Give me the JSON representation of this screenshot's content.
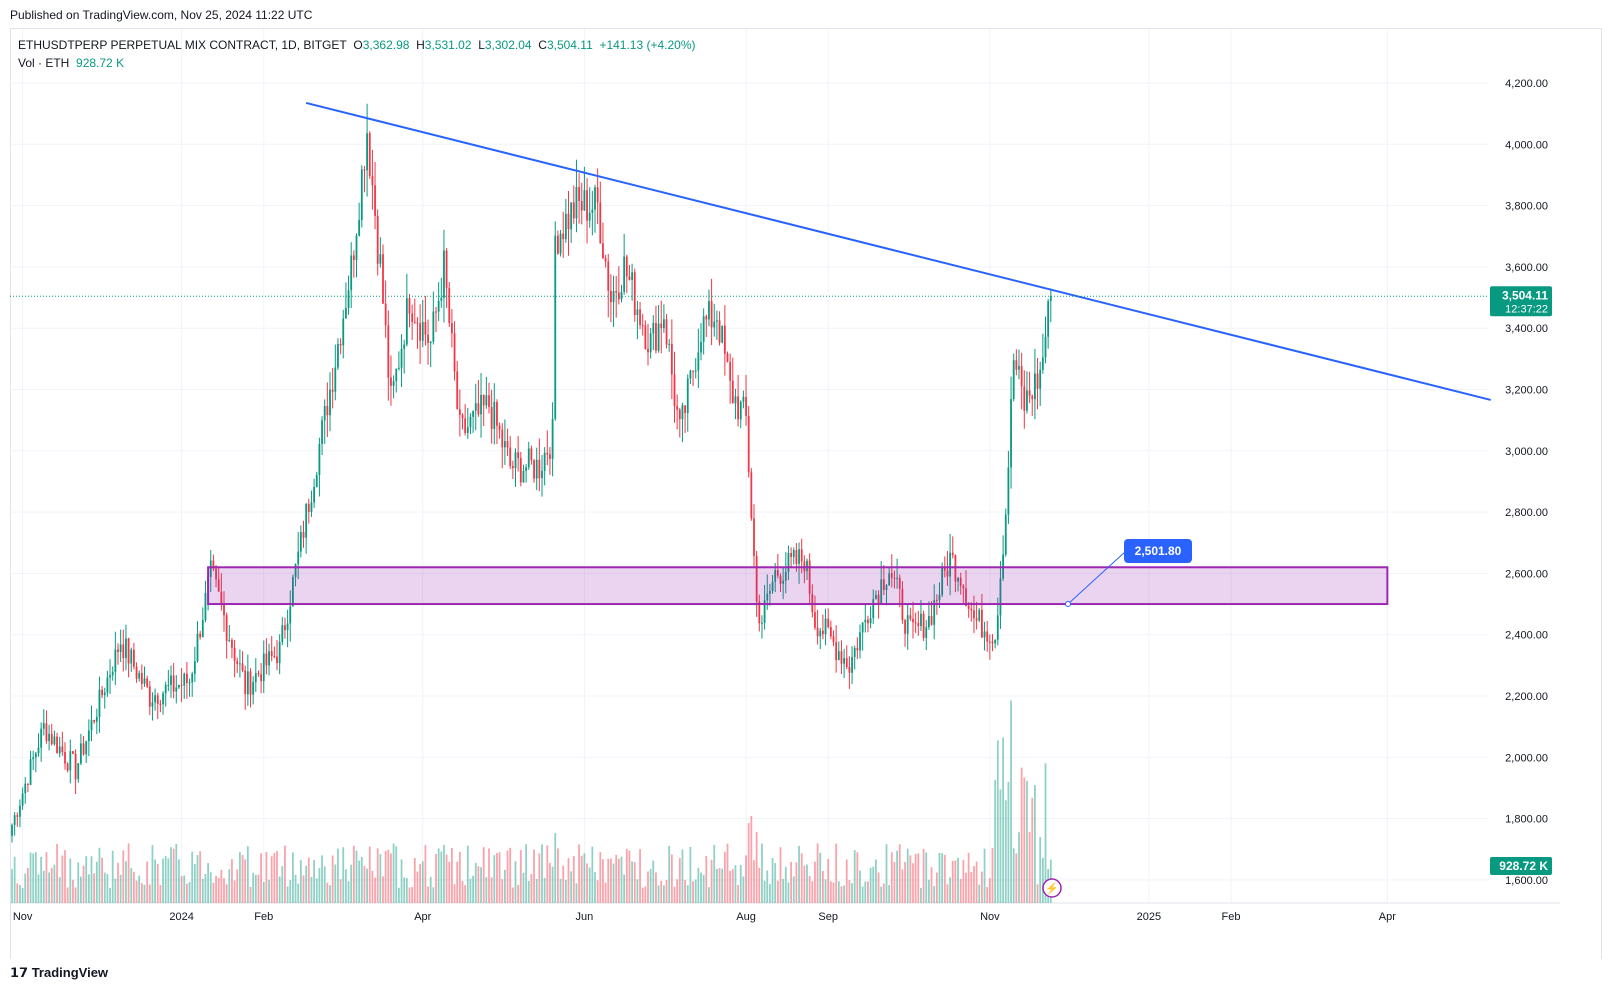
{
  "published": "Published on TradingView.com, Nov 25, 2024 11:22 UTC",
  "legend": {
    "symbol": "ETHUSDTPERP PERPETUAL MIX CONTRACT, 1D, BITGET",
    "o_label": "O",
    "o": "3,362.98",
    "h_label": "H",
    "h": "3,531.02",
    "l_label": "L",
    "l": "3,302.04",
    "c_label": "C",
    "c": "3,504.11",
    "change": "+141.13 (+4.20%)",
    "vol_label": "Vol · ETH",
    "vol": "928.72 K"
  },
  "brand": "TradingView",
  "colors": {
    "up": "#089981",
    "down": "#f23645",
    "trendline": "#2962ff",
    "zone": "#9c27b0"
  },
  "chart_data": {
    "type": "candlestick",
    "title": "ETHUSDTPERP PERPETUAL MIX CONTRACT, 1D, BITGET",
    "x_unit": "days since 2023-10-20",
    "ylim": [
      1550,
      4300
    ],
    "y_ticks": [
      "4,200.00",
      "4,000.00",
      "3,800.00",
      "3,600.00",
      "3,400.00",
      "3,200.00",
      "3,000.00",
      "2,800.00",
      "2,600.00",
      "2,400.00",
      "2,200.00",
      "2,000.00",
      "1,800.00",
      "1,600.00"
    ],
    "y_tick_values": [
      4200,
      4000,
      3800,
      3600,
      3400,
      3200,
      3000,
      2800,
      2600,
      2400,
      2200,
      2000,
      1800,
      1600
    ],
    "x_ticks": [
      {
        "label": "Nov",
        "day": 4
      },
      {
        "label": "2024",
        "day": 64
      },
      {
        "label": "Feb",
        "day": 95
      },
      {
        "label": "Apr",
        "day": 155
      },
      {
        "label": "Jun",
        "day": 216
      },
      {
        "label": "Aug",
        "day": 277
      },
      {
        "label": "Sep",
        "day": 308
      },
      {
        "label": "Nov",
        "day": 369
      },
      {
        "label": "2025",
        "day": 429
      },
      {
        "label": "Feb",
        "day": 460
      },
      {
        "label": "Apr",
        "day": 519
      }
    ],
    "close_path": [
      [
        0,
        1780
      ],
      [
        12,
        2100
      ],
      [
        24,
        1960
      ],
      [
        41,
        2380
      ],
      [
        52,
        2200
      ],
      [
        67,
        2250
      ],
      [
        75,
        2600
      ],
      [
        88,
        2230
      ],
      [
        101,
        2350
      ],
      [
        109,
        2700
      ],
      [
        120,
        3200
      ],
      [
        128,
        3600
      ],
      [
        134,
        4050
      ],
      [
        139,
        3600
      ],
      [
        143,
        3150
      ],
      [
        150,
        3500
      ],
      [
        158,
        3350
      ],
      [
        163,
        3600
      ],
      [
        169,
        3050
      ],
      [
        180,
        3150
      ],
      [
        188,
        2950
      ],
      [
        199,
        2950
      ],
      [
        204,
        3050
      ],
      [
        205,
        3700
      ],
      [
        213,
        3800
      ],
      [
        221,
        3800
      ],
      [
        226,
        3500
      ],
      [
        231,
        3600
      ],
      [
        241,
        3350
      ],
      [
        246,
        3450
      ],
      [
        252,
        3050
      ],
      [
        260,
        3400
      ],
      [
        266,
        3450
      ],
      [
        271,
        3200
      ],
      [
        277,
        3100
      ],
      [
        281,
        2500
      ],
      [
        283,
        2450
      ],
      [
        288,
        2600
      ],
      [
        299,
        2650
      ],
      [
        303,
        2450
      ],
      [
        312,
        2350
      ],
      [
        316,
        2300
      ],
      [
        324,
        2500
      ],
      [
        331,
        2620
      ],
      [
        339,
        2400
      ],
      [
        346,
        2450
      ],
      [
        354,
        2650
      ],
      [
        358,
        2600
      ],
      [
        363,
        2450
      ],
      [
        371,
        2400
      ],
      [
        375,
        2800
      ],
      [
        378,
        3300
      ],
      [
        382,
        3150
      ],
      [
        388,
        3250
      ],
      [
        392,
        3504.11
      ]
    ],
    "last_price": "3,504.11",
    "last_price_value": 3504.11,
    "countdown": "12:37:22",
    "volume_last": "928.72 K",
    "trendline": {
      "start": [
        111,
        4135
      ],
      "end": [
        558,
        3166
      ]
    },
    "zone": {
      "day_start": 74,
      "day_end": 519,
      "price_low": 2500,
      "price_high": 2620,
      "label": "2,501.80"
    }
  }
}
